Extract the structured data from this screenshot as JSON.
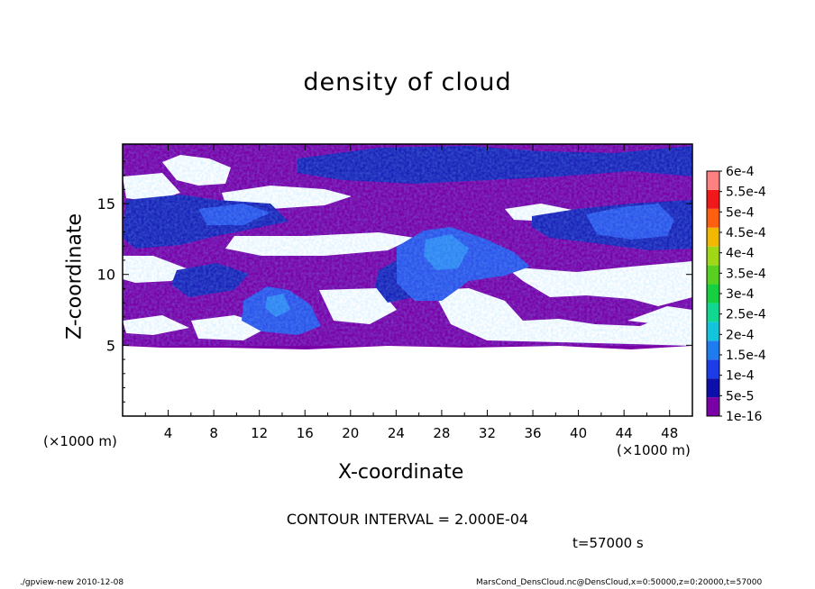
{
  "title": "density of cloud",
  "contour_interval": "CONTOUR INTERVAL = 2.000E-04",
  "time": "t=57000 s",
  "footer": {
    "left": "./gpview-new  2010-12-08",
    "right": "MarsCond_DensCloud.nc@DensCloud,x=0:50000,z=0:20000,t=57000"
  },
  "colors": {
    "background_fill": "#7a00a8",
    "empty": "#ffffff"
  },
  "chart_data": {
    "type": "heatmap",
    "title": "density of cloud",
    "xlabel": "X-coordinate",
    "ylabel": "Z-coordinate",
    "x_unit": "(×1000 m)",
    "xlim": [
      0,
      50
    ],
    "ylim": [
      0,
      19.2
    ],
    "x_ticks": [
      "4",
      "8",
      "12",
      "16",
      "20",
      "24",
      "28",
      "32",
      "36",
      "40",
      "44",
      "48"
    ],
    "x_tick_values": [
      4,
      8,
      12,
      16,
      20,
      24,
      28,
      32,
      36,
      40,
      44,
      48
    ],
    "y_ticks": [
      "5",
      "10",
      "15"
    ],
    "y_tick_values": [
      5,
      10,
      15
    ],
    "colorbar": {
      "labels": [
        "1e-16",
        "5e-5",
        "1e-4",
        "1.5e-4",
        "2e-4",
        "2.5e-4",
        "3e-4",
        "3.5e-4",
        "4e-4",
        "4.5e-4",
        "5e-4",
        "5.5e-4",
        "6e-4"
      ],
      "colors": [
        "#7a00a8",
        "#0c10a8",
        "#1c3ce8",
        "#1e7cf0",
        "#12c4dc",
        "#10d890",
        "#16d040",
        "#58d020",
        "#a0d818",
        "#f0b800",
        "#ff6010",
        "#f01818",
        "#ff8080"
      ]
    },
    "regions": [
      {
        "level": "1e-16",
        "x": [
          0,
          50
        ],
        "z": [
          4.7,
          19.0
        ]
      },
      {
        "level": "5e-5",
        "x": [
          15,
          50
        ],
        "z": [
          17,
          19.0
        ]
      },
      {
        "level": "5e-5",
        "x": [
          4,
          25
        ],
        "z": [
          12,
          15.5
        ]
      },
      {
        "level": "1e-4",
        "x": [
          23,
          35
        ],
        "z": [
          8,
          13
        ]
      },
      {
        "level": "1e-4",
        "x": [
          12,
          17
        ],
        "z": [
          5.7,
          9
        ]
      },
      {
        "level": "1e-4",
        "x": [
          40,
          48
        ],
        "z": [
          12.5,
          15
        ]
      },
      {
        "level": "1.5e-4",
        "x": [
          26,
          31
        ],
        "z": [
          9,
          12
        ]
      }
    ]
  }
}
